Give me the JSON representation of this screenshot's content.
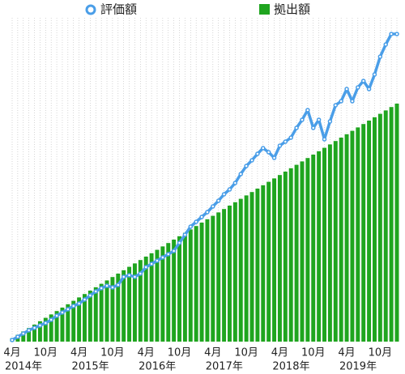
{
  "chart_data": {
    "type": "bar_line",
    "categories": [
      "4月",
      null,
      null,
      null,
      null,
      null,
      "10月",
      null,
      null,
      null,
      null,
      null,
      "4月",
      null,
      null,
      null,
      null,
      null,
      "10月",
      null,
      null,
      null,
      null,
      null,
      "4月",
      null,
      null,
      null,
      null,
      null,
      "10月",
      null,
      null,
      null,
      null,
      null,
      "4月",
      null,
      null,
      null,
      null,
      null,
      "10月",
      null,
      null,
      null,
      null,
      null,
      "4月",
      null,
      null,
      null,
      null,
      null,
      "10月",
      null,
      null,
      null,
      null,
      null,
      "4月",
      null,
      null,
      null,
      null,
      null,
      "10月",
      null,
      null,
      null
    ],
    "category_years": [
      "2014年",
      null,
      null,
      null,
      null,
      null,
      null,
      null,
      null,
      null,
      null,
      null,
      "2015年",
      null,
      null,
      null,
      null,
      null,
      null,
      null,
      null,
      null,
      null,
      null,
      "2016年",
      null,
      null,
      null,
      null,
      null,
      null,
      null,
      null,
      null,
      null,
      null,
      "2017年",
      null,
      null,
      null,
      null,
      null,
      null,
      null,
      null,
      null,
      null,
      null,
      "2018年",
      null,
      null,
      null,
      null,
      null,
      null,
      null,
      null,
      null,
      null,
      null,
      "2019年",
      null,
      null,
      null,
      null,
      null,
      null,
      null,
      null,
      null
    ],
    "series": [
      {
        "name": "拠出額",
        "kind": "bar",
        "color": "#1fa51f",
        "values": [
          4.2,
          8.4,
          12.6,
          16.8,
          21,
          25.2,
          29.4,
          33.6,
          37.8,
          42,
          46.2,
          50.4,
          54.6,
          58.8,
          63,
          67.2,
          71.4,
          75.6,
          79.8,
          84,
          88.2,
          92.4,
          96.6,
          100.8,
          105,
          109.2,
          113.4,
          117.6,
          121.8,
          126,
          130.2,
          134.4,
          138.6,
          142.8,
          147,
          151.2,
          155.4,
          159.6,
          163.8,
          168,
          172.2,
          176.4,
          180.6,
          184.8,
          189,
          193.2,
          197.4,
          201.6,
          205.8,
          210,
          214.2,
          218.4,
          222.6,
          226.8,
          231,
          235.2,
          239.4,
          243.6,
          247.8,
          252,
          256.2,
          260.4,
          264.6,
          268.8,
          273,
          277.2,
          281.4,
          285.6,
          289.8,
          294
        ]
      },
      {
        "name": "評価額",
        "kind": "line",
        "color": "#4a9ee8",
        "values": [
          2,
          6,
          10,
          14,
          17,
          20,
          23,
          27,
          32,
          36,
          40,
          44,
          47,
          52,
          57,
          62,
          66,
          69,
          67,
          70,
          80,
          82,
          80,
          84,
          92,
          96,
          100,
          104,
          108,
          112,
          122,
          132,
          142,
          148,
          154,
          160,
          167,
          174,
          182,
          188,
          196,
          207,
          217,
          224,
          232,
          239,
          234,
          227,
          242,
          247,
          252,
          264,
          274,
          286,
          264,
          274,
          250,
          272,
          292,
          297,
          312,
          297,
          314,
          322,
          312,
          330,
          352,
          367,
          380,
          380
        ]
      }
    ],
    "ylim": [
      0,
      400
    ],
    "grid": true
  }
}
